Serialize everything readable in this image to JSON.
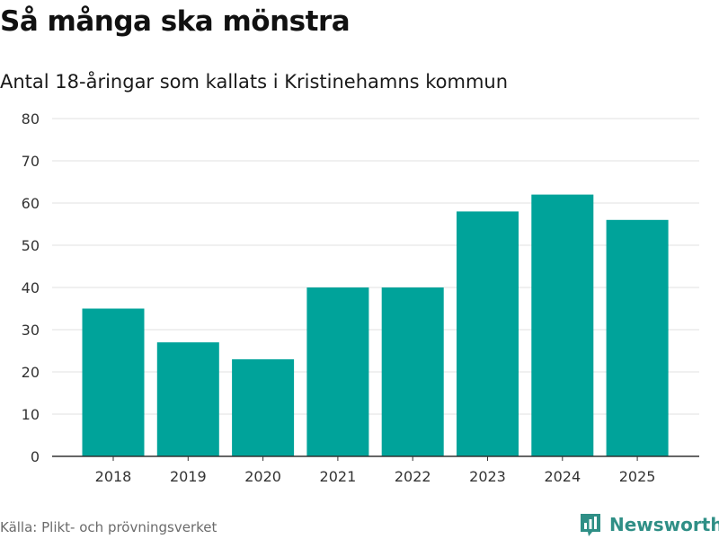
{
  "colors": {
    "bar": "#00a39a",
    "grid": "#e0e0e0",
    "axis": "#333333",
    "tick_text": "#333333",
    "brand": "#2f8f86"
  },
  "chart_data": {
    "type": "bar",
    "title": "Så många ska mönstra",
    "subtitle": "Antal 18-åringar som kallats i Kristinehamns kommun",
    "xlabel": "",
    "ylabel": "",
    "categories": [
      "2018",
      "2019",
      "2020",
      "2021",
      "2022",
      "2023",
      "2024",
      "2025"
    ],
    "values": [
      35,
      27,
      23,
      40,
      40,
      58,
      62,
      56
    ],
    "ylim": [
      0,
      80
    ],
    "yticks": [
      "0",
      "10",
      "20",
      "30",
      "40",
      "50",
      "60",
      "70",
      "80"
    ],
    "grid": true,
    "legend": "none"
  },
  "footer": {
    "source": "Källa: Plikt- och prövningsverket",
    "brand_name": "Newsworthy",
    "brand_icon": "newsworthy-logo-icon"
  }
}
